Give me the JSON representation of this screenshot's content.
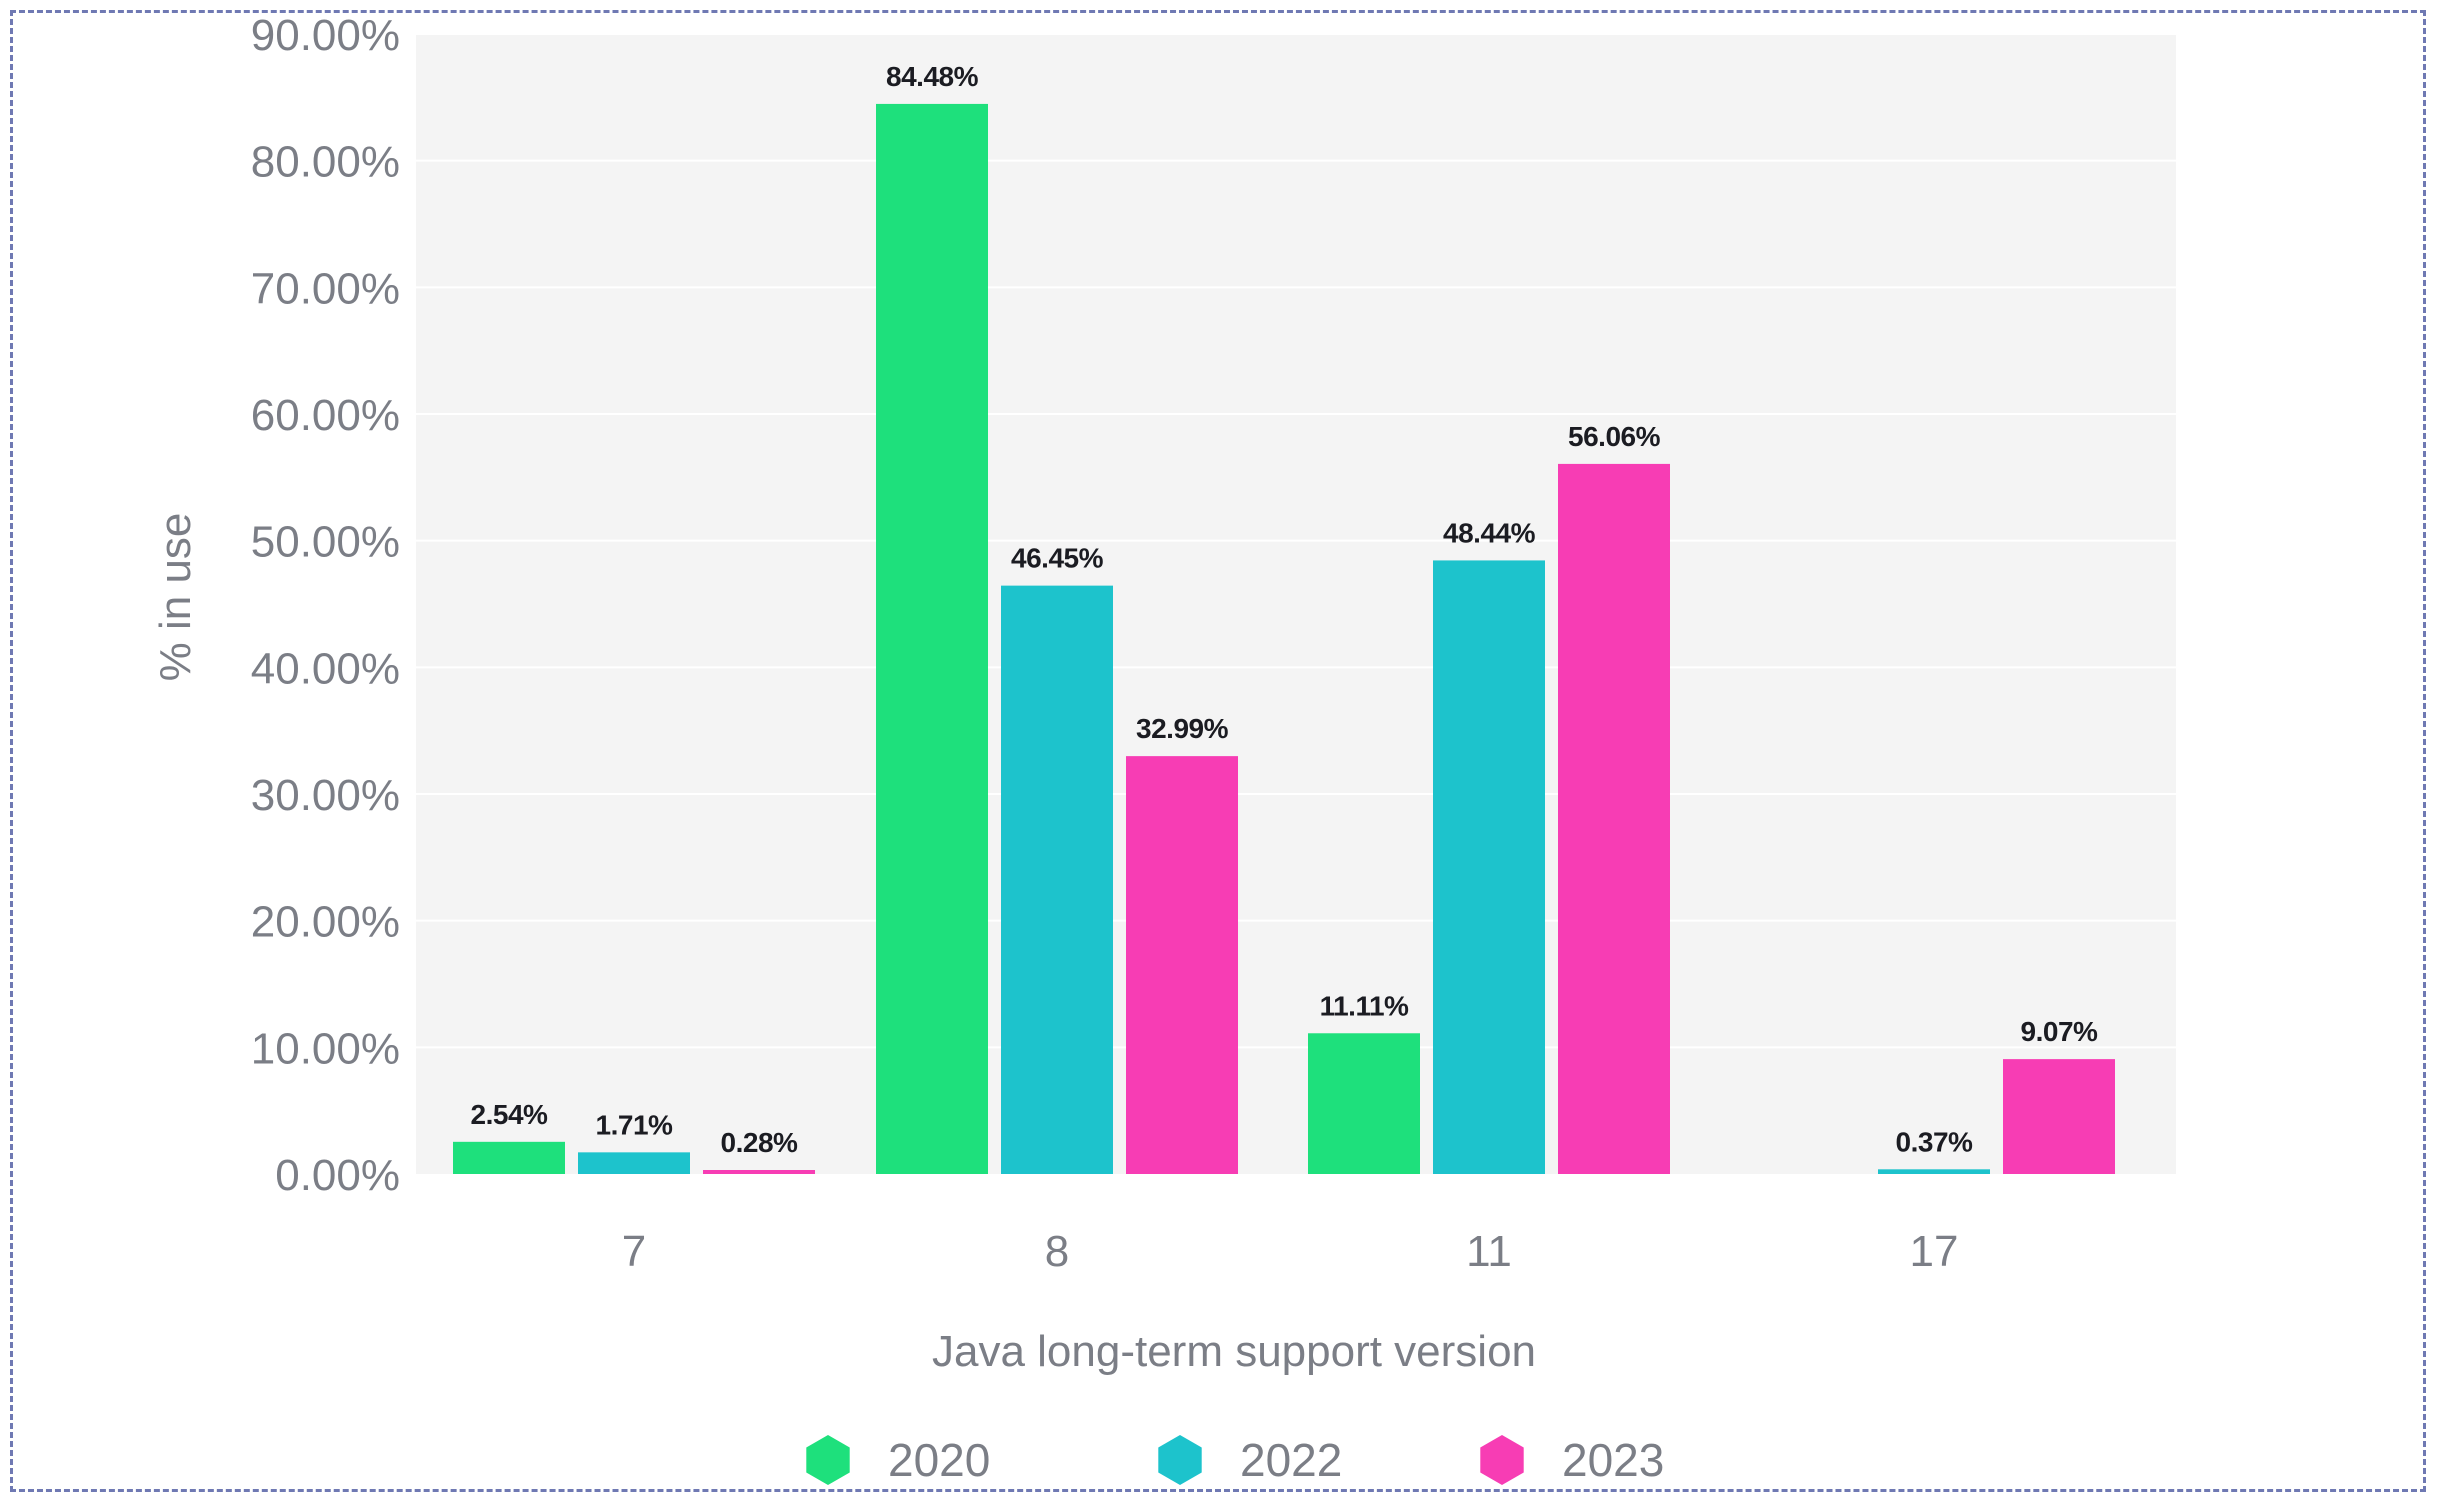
{
  "chart_data": {
    "type": "bar",
    "title": "",
    "xlabel": "Java long-term support version",
    "ylabel": "% in use",
    "ylim": [
      0,
      90
    ],
    "yticks": [
      "0.00%",
      "10.00%",
      "20.00%",
      "30.00%",
      "40.00%",
      "50.00%",
      "60.00%",
      "70.00%",
      "80.00%",
      "90.00%"
    ],
    "categories": [
      "7",
      "8",
      "11",
      "17"
    ],
    "series": [
      {
        "name": "2020",
        "color": "#1ee07c",
        "values": [
          2.54,
          84.48,
          11.11,
          null
        ],
        "labels": [
          "2.54%",
          "84.48%",
          "11.11%",
          ""
        ]
      },
      {
        "name": "2022",
        "color": "#1dc3cc",
        "values": [
          1.71,
          46.45,
          48.44,
          0.37
        ],
        "labels": [
          "1.71%",
          "46.45%",
          "48.44%",
          "0.37%"
        ]
      },
      {
        "name": "2023",
        "color": "#f73db4",
        "values": [
          0.28,
          32.99,
          56.06,
          9.07
        ],
        "labels": [
          "0.28%",
          "32.99%",
          "56.06%",
          "9.07%"
        ]
      }
    ],
    "grid": true,
    "legend_position": "bottom-center",
    "plot_background": "#f4f4f4"
  }
}
